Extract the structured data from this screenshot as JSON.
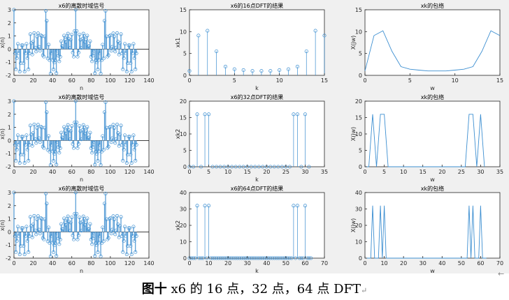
{
  "figure": {
    "caption_prefix": "图十",
    "caption_text": " x6 的 16 点，32 点，64 点 DFT",
    "caption_mark": "↵",
    "return_mark": "←",
    "stem_color": "#3d8fd1",
    "fill_color": "#a9cbe9"
  },
  "chart_data": [
    {
      "type": "stem",
      "fill": true,
      "title": "x6的离散时域信号",
      "xlabel": "n",
      "ylabel": "x(n)",
      "xlim": [
        0,
        140
      ],
      "ylim": [
        -2,
        3
      ],
      "xticks": [
        0,
        20,
        40,
        60,
        80,
        100,
        120,
        140
      ],
      "yticks": [
        -2,
        -1,
        0,
        1,
        2,
        3
      ],
      "x": [
        0,
        1,
        2,
        3,
        4,
        5,
        6,
        7,
        8,
        9,
        10,
        11,
        12,
        13,
        14,
        15,
        16,
        17,
        18,
        19,
        20,
        21,
        22,
        23,
        24,
        25,
        26,
        27,
        28,
        29,
        30,
        31,
        32,
        33,
        34,
        35,
        36,
        37,
        38,
        39,
        40,
        41,
        42,
        43,
        44,
        45,
        46,
        47,
        48,
        49,
        50,
        51,
        52,
        53,
        54,
        55,
        56,
        57,
        58,
        59,
        60,
        61,
        62,
        63,
        64,
        65,
        66,
        67,
        68,
        69,
        70,
        71,
        72,
        73,
        74,
        75,
        76,
        77,
        78,
        79,
        80,
        81,
        82,
        83,
        84,
        85,
        86,
        87,
        88,
        89,
        90,
        91,
        92,
        93,
        94,
        95,
        96,
        97,
        98,
        99,
        100,
        101,
        102,
        103,
        104,
        105,
        106,
        107,
        108,
        109,
        110,
        111,
        112,
        113,
        114,
        115,
        116,
        117,
        118,
        119,
        120,
        121,
        122,
        123,
        124,
        125,
        126,
        127
      ],
      "y": [
        3.0,
        -0.32,
        -1.54,
        -0.69,
        0.4,
        -0.31,
        -1.71,
        -1.07,
        0.29,
        0.29,
        -1.07,
        -1.71,
        -0.31,
        0.4,
        -0.69,
        -1.54,
        -0.32,
        1.14,
        0.45,
        -0.41,
        0.57,
        1.22,
        0.11,
        -0.18,
        0.95,
        1.2,
        0.17,
        -0.12,
        1.04,
        0.99,
        -0.46,
        -0.57,
        0.97,
        2.92,
        2.16,
        -0.71,
        0.34,
        -0.85,
        -1.86,
        -0.33,
        -0.82,
        -1.55,
        -1.02,
        -0.84,
        -1.83,
        -0.12,
        -0.5,
        -0.93,
        -0.58,
        0.6,
        0.24,
        0.2,
        1.03,
        0.71,
        0.52,
        0.98,
        1.18,
        0.78,
        0.09,
        0.71,
        1.11,
        -0.26,
        -0.57,
        1.38,
        3.0,
        1.38,
        -0.57,
        -0.26,
        1.11,
        0.71,
        0.09,
        0.78,
        1.18,
        0.98,
        0.52,
        0.71,
        1.03,
        0.2,
        0.24,
        0.6,
        -0.58,
        -0.93,
        -0.5,
        -0.12,
        -1.83,
        -0.84,
        -1.02,
        -1.55,
        -0.82,
        -0.33,
        -1.86,
        -0.85,
        0.34,
        -0.71,
        2.16,
        2.92,
        0.97,
        -0.57,
        -0.46,
        0.99,
        1.04,
        -0.12,
        0.17,
        1.2,
        0.95,
        -0.18,
        0.11,
        1.22,
        0.57,
        -0.41,
        0.45,
        1.14,
        -0.32,
        -1.54,
        -0.69,
        0.4,
        -0.31,
        -1.71,
        -1.07,
        0.29,
        0.29,
        -1.07,
        -1.71,
        -0.31,
        0.4,
        -0.69,
        -1.54,
        -0.32
      ]
    },
    {
      "type": "stem",
      "title": "x6的16点DFT的结果",
      "xlabel": "k",
      "ylabel": "xk1",
      "xlim": [
        0,
        15
      ],
      "ylim": [
        0,
        15
      ],
      "xticks": [
        0,
        5,
        10,
        15
      ],
      "yticks": [
        0,
        5,
        10,
        15
      ],
      "x": [
        0,
        1,
        2,
        3,
        4,
        5,
        6,
        7,
        8,
        9,
        10,
        11,
        12,
        13,
        14,
        15
      ],
      "y": [
        1.0,
        9.1,
        10.2,
        5.5,
        2.0,
        1.4,
        1.2,
        1.0,
        1.0,
        1.0,
        1.2,
        1.4,
        2.0,
        5.5,
        10.2,
        9.1
      ]
    },
    {
      "type": "line",
      "title": "xk的包络",
      "xlabel": "w",
      "ylabel": "X(jw)",
      "xlim": [
        0,
        15
      ],
      "ylim": [
        0,
        15
      ],
      "xticks": [
        0,
        5,
        10,
        15
      ],
      "yticks": [
        0,
        5,
        10,
        15
      ],
      "x": [
        0,
        1,
        2,
        3,
        4,
        5,
        6,
        7,
        8,
        9,
        10,
        11,
        12,
        13,
        14,
        15
      ],
      "y": [
        1.0,
        9.1,
        10.2,
        5.5,
        2.0,
        1.4,
        1.2,
        1.0,
        1.0,
        1.0,
        1.2,
        1.4,
        2.0,
        5.5,
        10.2,
        9.1
      ]
    },
    {
      "type": "stem",
      "fill": true,
      "title": "x6的离散时域信号",
      "xlabel": "n",
      "ylabel": "x(n)",
      "xlim": [
        0,
        140
      ],
      "ylim": [
        -2,
        3
      ],
      "xticks": [
        0,
        20,
        40,
        60,
        80,
        100,
        120,
        140
      ],
      "yticks": [
        -2,
        -1,
        0,
        1,
        2,
        3
      ],
      "x": [
        0,
        1,
        2,
        3,
        4,
        5,
        6,
        7,
        8,
        9,
        10,
        11,
        12,
        13,
        14,
        15,
        16,
        17,
        18,
        19,
        20,
        21,
        22,
        23,
        24,
        25,
        26,
        27,
        28,
        29,
        30,
        31,
        32,
        33,
        34,
        35,
        36,
        37,
        38,
        39,
        40,
        41,
        42,
        43,
        44,
        45,
        46,
        47,
        48,
        49,
        50,
        51,
        52,
        53,
        54,
        55,
        56,
        57,
        58,
        59,
        60,
        61,
        62,
        63,
        64,
        65,
        66,
        67,
        68,
        69,
        70,
        71,
        72,
        73,
        74,
        75,
        76,
        77,
        78,
        79,
        80,
        81,
        82,
        83,
        84,
        85,
        86,
        87,
        88,
        89,
        90,
        91,
        92,
        93,
        94,
        95,
        96,
        97,
        98,
        99,
        100,
        101,
        102,
        103,
        104,
        105,
        106,
        107,
        108,
        109,
        110,
        111,
        112,
        113,
        114,
        115,
        116,
        117,
        118,
        119,
        120,
        121,
        122,
        123,
        124,
        125,
        126,
        127
      ],
      "y": [
        3.0,
        -0.32,
        -1.54,
        -0.69,
        0.4,
        -0.31,
        -1.71,
        -1.07,
        0.29,
        0.29,
        -1.07,
        -1.71,
        -0.31,
        0.4,
        -0.69,
        -1.54,
        -0.32,
        1.14,
        0.45,
        -0.41,
        0.57,
        1.22,
        0.11,
        -0.18,
        0.95,
        1.2,
        0.17,
        -0.12,
        1.04,
        0.99,
        -0.46,
        -0.57,
        0.97,
        2.92,
        2.16,
        -0.71,
        0.34,
        -0.85,
        -1.86,
        -0.33,
        -0.82,
        -1.55,
        -1.02,
        -0.84,
        -1.83,
        -0.12,
        -0.5,
        -0.93,
        -0.58,
        0.6,
        0.24,
        0.2,
        1.03,
        0.71,
        0.52,
        0.98,
        1.18,
        0.78,
        0.09,
        0.71,
        1.11,
        -0.26,
        -0.57,
        1.38,
        3.0,
        1.38,
        -0.57,
        -0.26,
        1.11,
        0.71,
        0.09,
        0.78,
        1.18,
        0.98,
        0.52,
        0.71,
        1.03,
        0.2,
        0.24,
        0.6,
        -0.58,
        -0.93,
        -0.5,
        -0.12,
        -1.83,
        -0.84,
        -1.02,
        -1.55,
        -0.82,
        -0.33,
        -1.86,
        -0.85,
        0.34,
        -0.71,
        2.16,
        2.92,
        0.97,
        -0.57,
        -0.46,
        0.99,
        1.04,
        -0.12,
        0.17,
        1.2,
        0.95,
        -0.18,
        0.11,
        1.22,
        0.57,
        -0.41,
        0.45,
        1.14,
        -0.32,
        -1.54,
        -0.69,
        0.4,
        -0.31,
        -1.71,
        -1.07,
        0.29,
        0.29,
        -1.07,
        -1.71,
        -0.31,
        0.4,
        -0.69,
        -1.54,
        -0.32
      ]
    },
    {
      "type": "stem",
      "title": "x6的32点DFT的结果",
      "xlabel": "k",
      "ylabel": "xk2",
      "xlim": [
        0,
        35
      ],
      "ylim": [
        0,
        20
      ],
      "xticks": [
        0,
        5,
        10,
        15,
        20,
        25,
        30,
        35
      ],
      "yticks": [
        0,
        5,
        10,
        15,
        20
      ],
      "x": [
        0,
        1,
        2,
        3,
        4,
        5,
        6,
        7,
        8,
        9,
        10,
        11,
        12,
        13,
        14,
        15,
        16,
        17,
        18,
        19,
        20,
        21,
        22,
        23,
        24,
        25,
        26,
        27,
        28,
        29,
        30,
        31
      ],
      "y": [
        0,
        0,
        16,
        0,
        16,
        16,
        0,
        0,
        0,
        0,
        0,
        0,
        0,
        0,
        0,
        0,
        0,
        0,
        0,
        0,
        0,
        0,
        0,
        0,
        0,
        0,
        0,
        16,
        16,
        0,
        16,
        0
      ]
    },
    {
      "type": "line",
      "title": "xk的包络",
      "xlabel": "w",
      "ylabel": "X(jw)",
      "xlim": [
        0,
        35
      ],
      "ylim": [
        0,
        20
      ],
      "xticks": [
        0,
        5,
        10,
        15,
        20,
        25,
        30,
        35
      ],
      "yticks": [
        0,
        5,
        10,
        15,
        20
      ],
      "x": [
        0,
        1,
        2,
        3,
        4,
        5,
        6,
        7,
        8,
        9,
        10,
        11,
        12,
        13,
        14,
        15,
        16,
        17,
        18,
        19,
        20,
        21,
        22,
        23,
        24,
        25,
        26,
        27,
        28,
        29,
        30,
        31
      ],
      "y": [
        0,
        0,
        16,
        0,
        16,
        16,
        0,
        0,
        0,
        0,
        0,
        0,
        0,
        0,
        0,
        0,
        0,
        0,
        0,
        0,
        0,
        0,
        0,
        0,
        0,
        0,
        0,
        16,
        16,
        0,
        16,
        0
      ]
    },
    {
      "type": "stem",
      "fill": true,
      "title": "x6的离散时域信号",
      "xlabel": "n",
      "ylabel": "x(n)",
      "xlim": [
        0,
        140
      ],
      "ylim": [
        -2,
        3
      ],
      "xticks": [
        0,
        20,
        40,
        60,
        80,
        100,
        120,
        140
      ],
      "yticks": [
        -2,
        -1,
        0,
        1,
        2,
        3
      ],
      "x": [
        0,
        1,
        2,
        3,
        4,
        5,
        6,
        7,
        8,
        9,
        10,
        11,
        12,
        13,
        14,
        15,
        16,
        17,
        18,
        19,
        20,
        21,
        22,
        23,
        24,
        25,
        26,
        27,
        28,
        29,
        30,
        31,
        32,
        33,
        34,
        35,
        36,
        37,
        38,
        39,
        40,
        41,
        42,
        43,
        44,
        45,
        46,
        47,
        48,
        49,
        50,
        51,
        52,
        53,
        54,
        55,
        56,
        57,
        58,
        59,
        60,
        61,
        62,
        63,
        64,
        65,
        66,
        67,
        68,
        69,
        70,
        71,
        72,
        73,
        74,
        75,
        76,
        77,
        78,
        79,
        80,
        81,
        82,
        83,
        84,
        85,
        86,
        87,
        88,
        89,
        90,
        91,
        92,
        93,
        94,
        95,
        96,
        97,
        98,
        99,
        100,
        101,
        102,
        103,
        104,
        105,
        106,
        107,
        108,
        109,
        110,
        111,
        112,
        113,
        114,
        115,
        116,
        117,
        118,
        119,
        120,
        121,
        122,
        123,
        124,
        125,
        126,
        127
      ],
      "y": [
        3.0,
        -0.32,
        -1.54,
        -0.69,
        0.4,
        -0.31,
        -1.71,
        -1.07,
        0.29,
        0.29,
        -1.07,
        -1.71,
        -0.31,
        0.4,
        -0.69,
        -1.54,
        -0.32,
        1.14,
        0.45,
        -0.41,
        0.57,
        1.22,
        0.11,
        -0.18,
        0.95,
        1.2,
        0.17,
        -0.12,
        1.04,
        0.99,
        -0.46,
        -0.57,
        0.97,
        2.92,
        2.16,
        -0.71,
        0.34,
        -0.85,
        -1.86,
        -0.33,
        -0.82,
        -1.55,
        -1.02,
        -0.84,
        -1.83,
        -0.12,
        -0.5,
        -0.93,
        -0.58,
        0.6,
        0.24,
        0.2,
        1.03,
        0.71,
        0.52,
        0.98,
        1.18,
        0.78,
        0.09,
        0.71,
        1.11,
        -0.26,
        -0.57,
        1.38,
        3.0,
        1.38,
        -0.57,
        -0.26,
        1.11,
        0.71,
        0.09,
        0.78,
        1.18,
        0.98,
        0.52,
        0.71,
        1.03,
        0.2,
        0.24,
        0.6,
        -0.58,
        -0.93,
        -0.5,
        -0.12,
        -1.83,
        -0.84,
        -1.02,
        -1.55,
        -0.82,
        -0.33,
        -1.86,
        -0.85,
        0.34,
        -0.71,
        2.16,
        2.92,
        0.97,
        -0.57,
        -0.46,
        0.99,
        1.04,
        -0.12,
        0.17,
        1.2,
        0.95,
        -0.18,
        0.11,
        1.22,
        0.57,
        -0.41,
        0.45,
        1.14,
        -0.32,
        -1.54,
        -0.69,
        0.4,
        -0.31,
        -1.71,
        -1.07,
        0.29,
        0.29,
        -1.07,
        -1.71,
        -0.31,
        0.4,
        -0.69,
        -1.54,
        -0.32
      ]
    },
    {
      "type": "stem",
      "title": "x6的64点DFT的结果",
      "xlabel": "k",
      "ylabel": "xk2",
      "xlim": [
        0,
        70
      ],
      "ylim": [
        0,
        40
      ],
      "xticks": [
        0,
        10,
        20,
        30,
        40,
        50,
        60,
        70
      ],
      "yticks": [
        0,
        10,
        20,
        30,
        40
      ],
      "x": [
        0,
        1,
        2,
        3,
        4,
        5,
        6,
        7,
        8,
        9,
        10,
        11,
        12,
        13,
        14,
        15,
        16,
        17,
        18,
        19,
        20,
        21,
        22,
        23,
        24,
        25,
        26,
        27,
        28,
        29,
        30,
        31,
        32,
        33,
        34,
        35,
        36,
        37,
        38,
        39,
        40,
        41,
        42,
        43,
        44,
        45,
        46,
        47,
        48,
        49,
        50,
        51,
        52,
        53,
        54,
        55,
        56,
        57,
        58,
        59,
        60,
        61,
        62,
        63
      ],
      "y": [
        0,
        0,
        0,
        0,
        32,
        0,
        0,
        0,
        32,
        0,
        32,
        0,
        0,
        0,
        0,
        0,
        0,
        0,
        0,
        0,
        0,
        0,
        0,
        0,
        0,
        0,
        0,
        0,
        0,
        0,
        0,
        0,
        0,
        0,
        0,
        0,
        0,
        0,
        0,
        0,
        0,
        0,
        0,
        0,
        0,
        0,
        0,
        0,
        0,
        0,
        0,
        0,
        0,
        0,
        32,
        0,
        32,
        0,
        0,
        0,
        32,
        0,
        0,
        0
      ]
    },
    {
      "type": "line",
      "title": "xk的包络",
      "xlabel": "w",
      "ylabel": "X(jw)",
      "xlim": [
        0,
        70
      ],
      "ylim": [
        0,
        40
      ],
      "xticks": [
        0,
        10,
        20,
        30,
        40,
        50,
        60,
        70
      ],
      "yticks": [
        0,
        10,
        20,
        30,
        40
      ],
      "x": [
        0,
        1,
        2,
        3,
        4,
        5,
        6,
        7,
        8,
        9,
        10,
        11,
        12,
        13,
        14,
        15,
        16,
        17,
        18,
        19,
        20,
        21,
        22,
        23,
        24,
        25,
        26,
        27,
        28,
        29,
        30,
        31,
        32,
        33,
        34,
        35,
        36,
        37,
        38,
        39,
        40,
        41,
        42,
        43,
        44,
        45,
        46,
        47,
        48,
        49,
        50,
        51,
        52,
        53,
        54,
        55,
        56,
        57,
        58,
        59,
        60,
        61,
        62,
        63
      ],
      "y": [
        0,
        0,
        0,
        0,
        32,
        0,
        0,
        0,
        32,
        0,
        32,
        0,
        0,
        0,
        0,
        0,
        0,
        0,
        0,
        0,
        0,
        0,
        0,
        0,
        0,
        0,
        0,
        0,
        0,
        0,
        0,
        0,
        0,
        0,
        0,
        0,
        0,
        0,
        0,
        0,
        0,
        0,
        0,
        0,
        0,
        0,
        0,
        0,
        0,
        0,
        0,
        0,
        0,
        0,
        32,
        0,
        32,
        0,
        0,
        0,
        32,
        0,
        0,
        0
      ]
    }
  ]
}
